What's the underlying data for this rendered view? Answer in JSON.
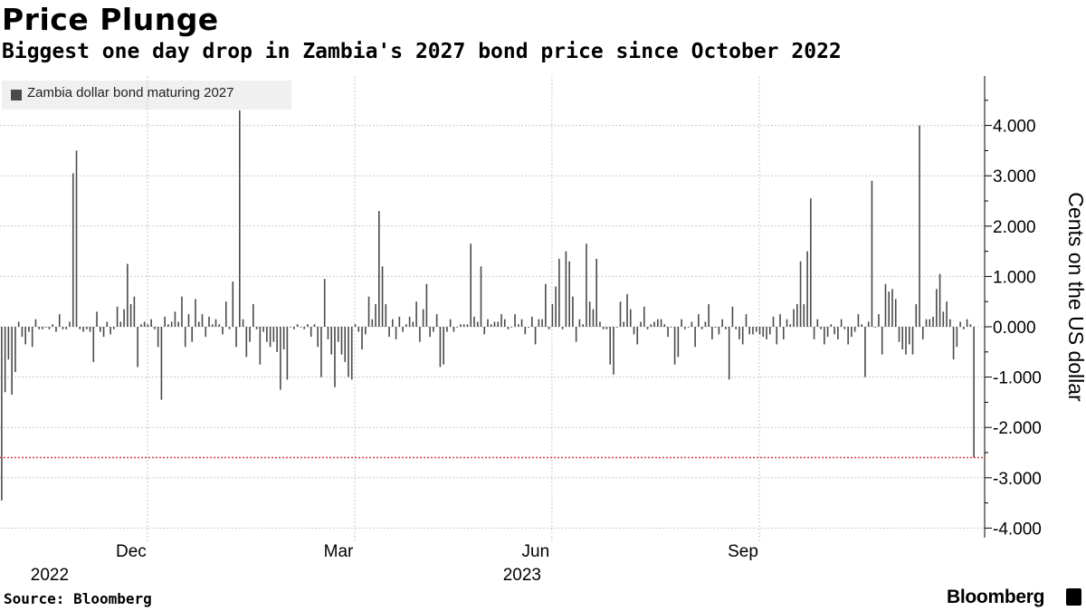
{
  "header": {
    "title": "Price Plunge",
    "subtitle": "Biggest one day drop in Zambia's 2027 bond price since October 2022"
  },
  "footer": {
    "source": "Source: Bloomberg",
    "brand": "Bloomberg"
  },
  "chart_data": {
    "type": "bar",
    "title": "Price Plunge",
    "subtitle": "Biggest one day drop in Zambia's 2027 bond price since October 2022",
    "ylabel": "Cents on the US dollar",
    "xlabel": "",
    "ylim": [
      -4.3,
      4.9
    ],
    "yticks": [
      "4.000",
      "3.000",
      "2.000",
      "1.000",
      "0.000",
      "-1.000",
      "-2.000",
      "-3.000",
      "-4.000"
    ],
    "ytick_values": [
      4,
      3,
      2,
      1,
      0,
      -1,
      -2,
      -3,
      -4
    ],
    "xticks": [
      {
        "label": "Dec",
        "year": "2022",
        "index": 45
      },
      {
        "label": "Mar",
        "year": "",
        "index": 106
      },
      {
        "label": "Jun",
        "year": "2023",
        "index": 164
      },
      {
        "label": "Sep",
        "year": "",
        "index": 225
      }
    ],
    "legend": [
      {
        "name": "Zambia dollar bond maturing 2027",
        "color": "#4a4a4a",
        "position": "top-left"
      }
    ],
    "reference_line": {
      "value": -2.6,
      "color": "#e0393e",
      "style": "dotted"
    },
    "series": [
      {
        "name": "Zambia dollar bond maturing 2027",
        "color": "#4a4a4a",
        "values": [
          -3.45,
          -1.3,
          -0.65,
          -1.35,
          -0.9,
          0.1,
          -0.2,
          -0.35,
          -0.1,
          -0.4,
          0.15,
          -0.05,
          -0.05,
          0.0,
          -0.05,
          0.05,
          -0.1,
          0.25,
          -0.05,
          -0.05,
          0.1,
          3.05,
          3.5,
          -0.05,
          -0.1,
          -0.05,
          -0.1,
          -0.7,
          0.3,
          -0.1,
          -0.2,
          0.1,
          -0.15,
          -0.05,
          0.4,
          0.1,
          0.35,
          1.25,
          0.45,
          0.6,
          -0.8,
          0.05,
          0.1,
          0.05,
          0.15,
          -0.05,
          -0.4,
          -1.45,
          0.2,
          0.05,
          0.1,
          0.3,
          0.1,
          0.6,
          -0.4,
          0.25,
          -0.3,
          0.55,
          0.1,
          0.25,
          -0.2,
          0.2,
          0.05,
          0.15,
          0.05,
          -0.15,
          0.5,
          -0.05,
          0.9,
          -0.4,
          4.3,
          0.15,
          -0.6,
          -0.3,
          0.45,
          -0.05,
          -0.75,
          -0.1,
          -0.3,
          -0.4,
          -0.3,
          -0.5,
          -1.25,
          -0.45,
          -1.05,
          0.0,
          -0.05,
          0.05,
          0.0,
          -0.05,
          0.05,
          -0.2,
          0.05,
          -0.4,
          -1.0,
          0.95,
          -0.25,
          -0.55,
          -1.2,
          -0.3,
          -0.55,
          -0.7,
          -1.0,
          -1.05,
          0.05,
          -0.1,
          -0.45,
          -0.15,
          0.6,
          0.15,
          0.45,
          2.3,
          1.2,
          0.45,
          -0.2,
          0.15,
          -0.25,
          0.2,
          -0.1,
          0.05,
          0.2,
          0.1,
          0.5,
          -0.3,
          0.35,
          0.85,
          -0.2,
          -0.1,
          0.25,
          -0.8,
          -0.75,
          -0.1,
          0.15,
          -0.1,
          0.0,
          0.05,
          0.05,
          0.05,
          1.65,
          0.2,
          0.1,
          1.2,
          -0.15,
          0.15,
          0.05,
          0.1,
          0.1,
          0.25,
          0.15,
          -0.05,
          0.0,
          0.25,
          0.05,
          0.15,
          -0.15,
          0.0,
          0.2,
          -0.35,
          0.15,
          0.15,
          0.85,
          -0.05,
          0.45,
          0.8,
          1.35,
          -0.05,
          1.5,
          1.3,
          0.6,
          -0.3,
          0.15,
          0.05,
          1.65,
          0.5,
          0.35,
          1.35,
          0.1,
          -0.05,
          -0.05,
          -0.75,
          -0.95,
          0.0,
          0.5,
          0.1,
          0.65,
          0.35,
          -0.15,
          -0.35,
          0.1,
          0.4,
          -0.05,
          0.05,
          0.1,
          0.15,
          0.15,
          0.05,
          -0.2,
          0.0,
          -0.75,
          -0.6,
          0.15,
          -0.05,
          0.0,
          0.1,
          -0.4,
          0.25,
          -0.05,
          0.1,
          0.45,
          -0.25,
          0.0,
          -0.15,
          0.15,
          -0.05,
          -1.05,
          0.4,
          -0.05,
          -0.25,
          -0.35,
          0.25,
          -0.15,
          -0.15,
          -0.1,
          -0.15,
          -0.2,
          -0.25,
          -0.15,
          0.2,
          -0.35,
          0.25,
          -0.25,
          0.15,
          0.05,
          0.35,
          0.45,
          1.3,
          0.45,
          1.5,
          2.55,
          -0.25,
          0.15,
          -0.05,
          -0.35,
          -0.2,
          0.05,
          -0.15,
          -0.25,
          0.15,
          -0.05,
          -0.35,
          -0.2,
          -0.1,
          0.25,
          0.05,
          -1.0,
          0.1,
          2.9,
          0.0,
          0.25,
          -0.55,
          0.85,
          0.7,
          0.75,
          0.55,
          -0.3,
          -0.45,
          -0.55,
          -0.35,
          -0.55,
          0.45,
          4.0,
          -0.25,
          0.15,
          0.15,
          0.2,
          0.75,
          1.05,
          0.3,
          0.5,
          0.15,
          -0.65,
          -0.4,
          0.1,
          -0.05,
          0.15,
          0.05,
          -2.6
        ]
      }
    ]
  }
}
